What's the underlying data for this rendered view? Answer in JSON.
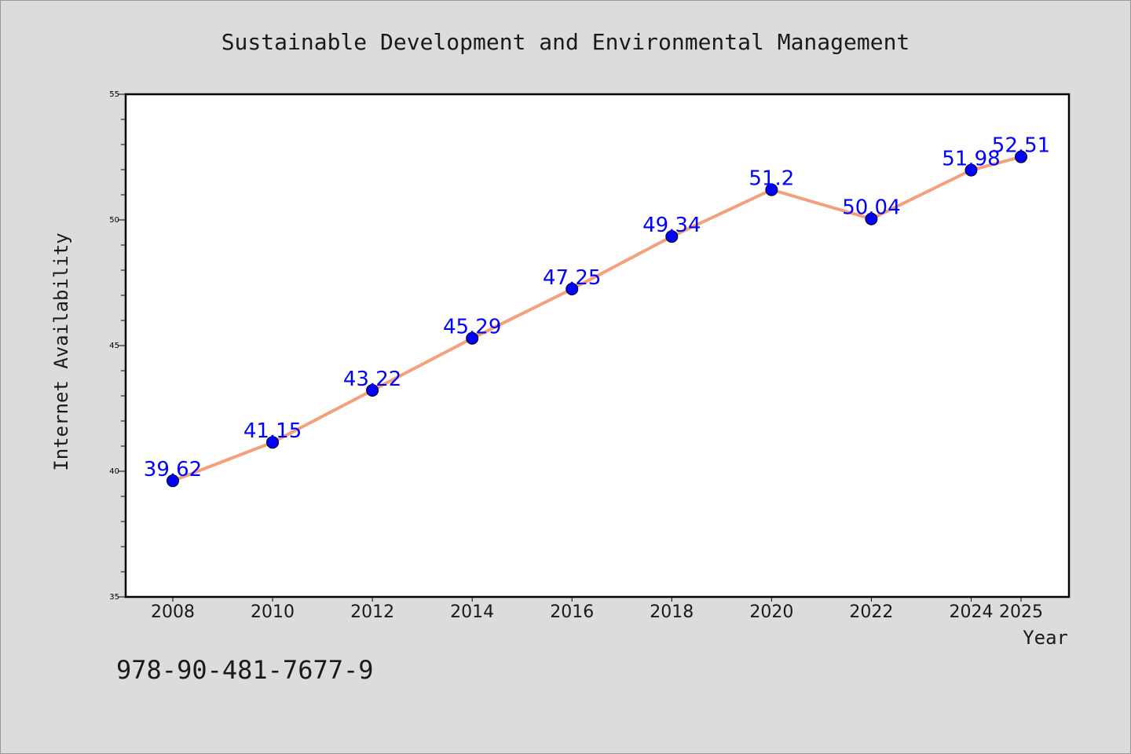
{
  "chart_data": {
    "type": "line",
    "title": "Sustainable Development and Environmental Management",
    "xlabel": "Year",
    "ylabel": "Internet Availability",
    "x": [
      "2008",
      "2010",
      "2012",
      "2014",
      "2016",
      "2018",
      "2020",
      "2022",
      "2024",
      "2025"
    ],
    "series": [
      {
        "values": [
          39.62,
          41.15,
          43.22,
          45.29,
          47.25,
          49.34,
          51.2,
          50.04,
          51.98,
          52.51
        ],
        "labels": [
          "39.62",
          "41.15",
          "43.22",
          "45.29",
          "47.25",
          "49.34",
          "51.2",
          "50.04",
          "51.98",
          "52.51"
        ],
        "line_color": "#f4a07a",
        "marker_color": "#0000ff"
      }
    ],
    "ylim": [
      35,
      55
    ],
    "y_ticks": [
      35,
      40,
      45,
      50,
      55
    ],
    "y_tick_labels": [
      "35",
      "40",
      "45",
      "50",
      "55"
    ],
    "grid": false,
    "legend": "none",
    "label_color": "#0000ff"
  },
  "footer": {
    "isbn": "978-90-481-7677-9"
  }
}
